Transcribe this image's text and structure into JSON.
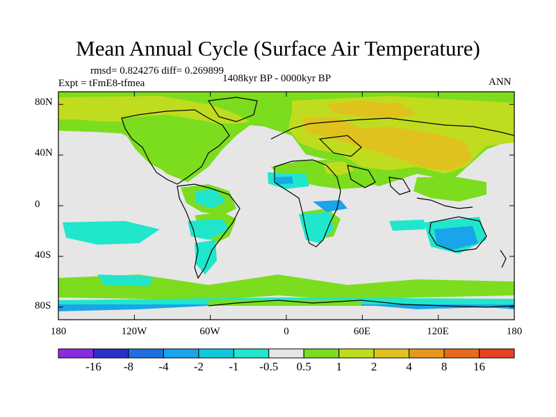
{
  "title": "Mean Annual Cycle (Surface Air Temperature)",
  "stats": "rmsd= 0.824276 diff= 0.269899",
  "experiment": "Expt = tFmE8-tfmea",
  "period": "1408kyr BP - 0000kyr BP",
  "season": "ANN",
  "y_ticks": [
    "80N",
    "40N",
    "0",
    "40S",
    "80S"
  ],
  "x_ticks": [
    "180",
    "120W",
    "60W",
    "0",
    "60E",
    "120E",
    "180"
  ],
  "colorbar": {
    "colors": [
      "#8a2be2",
      "#2a30c8",
      "#1e6ee0",
      "#1aa4ea",
      "#10c8dc",
      "#20e6cc",
      "#e6e6e6",
      "#7cdc1e",
      "#c0dc1e",
      "#e0c21e",
      "#e6981e",
      "#e66a1e",
      "#e6401e"
    ],
    "labels": [
      "-16",
      "-8",
      "-4",
      "-2",
      "-1",
      "-0.5",
      "0.5",
      "1",
      "2",
      "4",
      "8",
      "16"
    ]
  },
  "chart_data": {
    "type": "heatmap",
    "title": "Mean Annual Cycle (Surface Air Temperature)",
    "variable": "Surface Air Temperature difference",
    "lon_range": [
      -180,
      180
    ],
    "lat_range": [
      -90,
      90
    ],
    "levels": [
      -16,
      -8,
      -4,
      -2,
      -1,
      -0.5,
      0.5,
      1,
      2,
      4,
      8,
      16
    ]
  }
}
